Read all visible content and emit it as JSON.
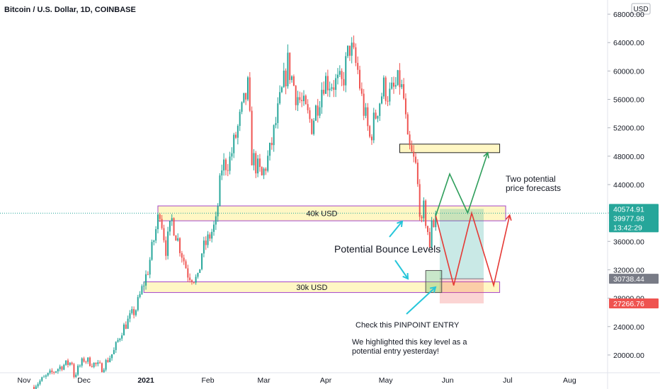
{
  "header": {
    "title": "Bitcoin / U.S. Dollar, 1D, COINBASE",
    "currency": "USD"
  },
  "chart_data": {
    "type": "candlestick",
    "title": "Bitcoin / U.S. Dollar, 1D, COINBASE",
    "y_axis": {
      "position": "right",
      "ylim": [
        17500,
        70000
      ],
      "ticks": [
        20000,
        24000,
        28000,
        32000,
        36000,
        40000,
        44000,
        48000,
        52000,
        56000,
        60000,
        64000,
        68000
      ],
      "tick_labels": [
        "20000.00",
        "24000.00",
        "28000.00",
        "32000.00",
        "36000.00",
        "40000.00",
        "44000.00",
        "48000.00",
        "52000.00",
        "56000.00",
        "60000.00",
        "64000.00",
        "68000.00"
      ]
    },
    "x_axis": {
      "labels": [
        "Nov",
        "Dec",
        "2021",
        "Feb",
        "Mar",
        "Apr",
        "May",
        "Jun",
        "Jul",
        "Aug"
      ],
      "label_dates": [
        "2020-11-01",
        "2020-12-01",
        "2021-01-01",
        "2021-02-01",
        "2021-03-01",
        "2021-04-01",
        "2021-05-01",
        "2021-06-01",
        "2021-07-01",
        "2021-08-01"
      ],
      "range": [
        "2020-10-20",
        "2021-08-20"
      ]
    },
    "price_labels": [
      {
        "text": "40574.91",
        "value": 40574.91,
        "color": "#26a69a"
      },
      {
        "text": "39977.98",
        "value": 39977.98,
        "color": "#26a69a"
      },
      {
        "text": "13:42:29",
        "value": 38900,
        "color": "#26a69a"
      },
      {
        "text": "30738.44",
        "value": 30738.44,
        "color": "#787b86"
      },
      {
        "text": "27266.76",
        "value": 27266.76,
        "color": "#ef5350"
      }
    ],
    "current_price": 39977.98,
    "series": [
      {
        "anchors": [
          [
            "2020-11-05",
            15500
          ],
          [
            "2020-11-20",
            18500
          ],
          [
            "2020-11-25",
            19000
          ],
          [
            "2020-11-26",
            17100
          ],
          [
            "2020-12-01",
            19400
          ],
          [
            "2020-12-10",
            18200
          ],
          [
            "2020-12-16",
            20500
          ],
          [
            "2020-12-20",
            23500
          ],
          [
            "2020-12-27",
            26500
          ],
          [
            "2021-01-02",
            32000
          ],
          [
            "2021-01-08",
            40500
          ],
          [
            "2021-01-11",
            35000
          ],
          [
            "2021-01-14",
            39000
          ],
          [
            "2021-01-22",
            31500
          ],
          [
            "2021-01-27",
            30500
          ],
          [
            "2021-01-29",
            34500
          ],
          [
            "2021-02-05",
            38500
          ],
          [
            "2021-02-08",
            46500
          ],
          [
            "2021-02-12",
            47500
          ],
          [
            "2021-02-21",
            57500
          ],
          [
            "2021-02-23",
            48000
          ],
          [
            "2021-02-28",
            45000
          ],
          [
            "2021-03-04",
            48500
          ],
          [
            "2021-03-13",
            61000
          ],
          [
            "2021-03-17",
            57000
          ],
          [
            "2021-03-25",
            52500
          ],
          [
            "2021-03-31",
            58800
          ],
          [
            "2021-04-09",
            58000
          ],
          [
            "2021-04-13",
            63500
          ],
          [
            "2021-04-17",
            60000
          ],
          [
            "2021-04-19",
            56000
          ],
          [
            "2021-04-23",
            50500
          ],
          [
            "2021-04-27",
            55000
          ],
          [
            "2021-04-30",
            57700
          ],
          [
            "2021-05-03",
            56500
          ],
          [
            "2021-05-08",
            58500
          ],
          [
            "2021-05-10",
            56000
          ],
          [
            "2021-05-12",
            49500
          ],
          [
            "2021-05-16",
            46500
          ],
          [
            "2021-05-19",
            38000
          ],
          [
            "2021-05-20",
            40500
          ],
          [
            "2021-05-22",
            37500
          ],
          [
            "2021-05-23",
            34500
          ],
          [
            "2021-05-24",
            39500
          ],
          [
            "2021-05-25",
            38500
          ],
          [
            "2021-05-26",
            40000
          ]
        ]
      }
    ],
    "zones": [
      {
        "label": "40k USD",
        "from_date": "2021-01-07",
        "to_date": "2021-06-30",
        "high": 41000,
        "low": 38900,
        "fill": "#fff7c4",
        "stroke": "#a547c9"
      },
      {
        "label": "30k USD",
        "from_date": "2020-12-31",
        "to_date": "2021-06-27",
        "high": 30300,
        "low": 28800,
        "fill": "#fff7c4",
        "stroke": "#a547c9"
      },
      {
        "label": "",
        "from_date": "2021-05-08",
        "to_date": "2021-06-27",
        "high": 49700,
        "low": 48500,
        "fill": "#fff7c4",
        "stroke": "#222222"
      }
    ],
    "entry_box": {
      "from_date": "2021-05-21",
      "to_date": "2021-05-29",
      "high": 31900,
      "low": 28800
    },
    "position": {
      "from_date": "2021-05-28",
      "to_date": "2021-06-19",
      "target": 40574.91,
      "entry": 30738.44,
      "stop": 27266.76
    },
    "forecasts": [
      {
        "color": "#2e9e5b",
        "points": [
          [
            "2021-05-26",
            39600
          ],
          [
            "2021-06-02",
            45500
          ],
          [
            "2021-06-11",
            40000
          ],
          [
            "2021-06-21",
            48500
          ]
        ]
      },
      {
        "color": "#e53935",
        "points": [
          [
            "2021-05-26",
            39600
          ],
          [
            "2021-06-04",
            29800
          ],
          [
            "2021-06-13",
            40000
          ],
          [
            "2021-06-24",
            29800
          ],
          [
            "2021-07-02",
            39700
          ]
        ]
      }
    ],
    "annotations": {
      "forecast_note": [
        "Two potential",
        "price forecasts"
      ],
      "bounce_note": "Potential Bounce Levels",
      "entry_note": "Check this PINPOINT ENTRY",
      "history_note": [
        "We highlighted this key level as a",
        "potential entry yesterday!"
      ]
    }
  }
}
